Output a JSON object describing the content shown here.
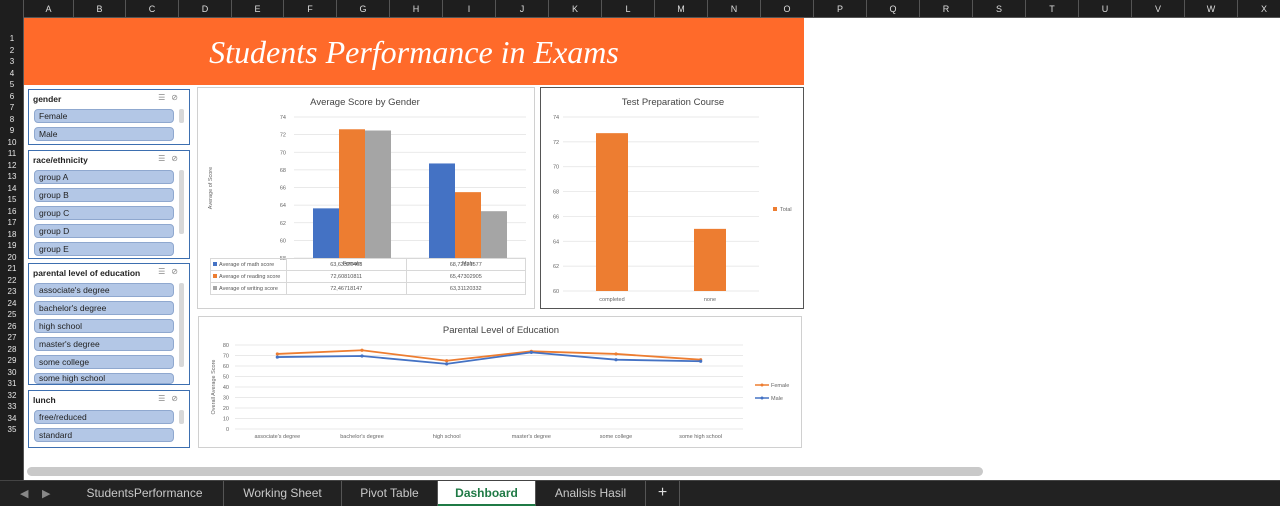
{
  "columns": [
    "A",
    "B",
    "C",
    "D",
    "E",
    "F",
    "G",
    "H",
    "I",
    "J",
    "K",
    "L",
    "M",
    "N",
    "O",
    "P",
    "Q",
    "R",
    "S",
    "T",
    "U",
    "V",
    "W",
    "X"
  ],
  "rows": [
    "1",
    "2",
    "3",
    "4",
    "5",
    "6",
    "7",
    "8",
    "9",
    "10",
    "11",
    "12",
    "13",
    "14",
    "15",
    "16",
    "17",
    "18",
    "19",
    "20",
    "21",
    "22",
    "23",
    "24",
    "25",
    "26",
    "27",
    "28",
    "29",
    "30",
    "31",
    "32",
    "33",
    "34",
    "35"
  ],
  "banner": {
    "title": "Students Performance in Exams",
    "color": "#ff6a2a"
  },
  "slicers": [
    {
      "title": "gender",
      "items": [
        "Female",
        "Male"
      ]
    },
    {
      "title": "race/ethnicity",
      "items": [
        "group A",
        "group B",
        "group C",
        "group D",
        "group E"
      ]
    },
    {
      "title": "parental level of education",
      "items": [
        "associate's degree",
        "bachelor's degree",
        "high school",
        "master's degree",
        "some college",
        "some high school"
      ]
    },
    {
      "title": "lunch",
      "items": [
        "free/reduced",
        "standard"
      ]
    }
  ],
  "chart_data": [
    {
      "type": "bar",
      "title": "Average Score by Gender",
      "ylabel": "Average of Score",
      "categories": [
        "Female",
        "Male"
      ],
      "ylim": [
        58,
        74
      ],
      "yticks": [
        "58",
        "60",
        "62",
        "64",
        "66",
        "68",
        "70",
        "72",
        "74"
      ],
      "series": [
        {
          "name": "Average of math score",
          "values": [
            63.63320463,
            68.72821577
          ],
          "labels": [
            "63,63320463",
            "68,72821577"
          ],
          "color": "#4472c4"
        },
        {
          "name": "Average of reading score",
          "values": [
            72.60810811,
            65.47302905
          ],
          "labels": [
            "72,60810811",
            "65,47302905"
          ],
          "color": "#ed7d31"
        },
        {
          "name": "Average of writing score",
          "values": [
            72.46718147,
            63.31120332
          ],
          "labels": [
            "72,46718147",
            "63,31120332"
          ],
          "color": "#a5a5a5"
        }
      ]
    },
    {
      "type": "bar",
      "title": "Test Preparation Course",
      "categories": [
        "completed",
        "none"
      ],
      "ylim": [
        60,
        74
      ],
      "yticks": [
        "60",
        "62",
        "64",
        "66",
        "68",
        "70",
        "72",
        "74"
      ],
      "series": [
        {
          "name": "Total",
          "values": [
            72.7,
            65.0
          ],
          "color": "#ed7d31"
        }
      ]
    },
    {
      "type": "line",
      "title": "Parental Level of Education",
      "ylabel": "Overall Average Score",
      "categories": [
        "associate's degree",
        "bachelor's degree",
        "high school",
        "master's degree",
        "some college",
        "some high school"
      ],
      "ylim": [
        0,
        80
      ],
      "yticks": [
        "0",
        "10",
        "20",
        "30",
        "40",
        "50",
        "60",
        "70",
        "80"
      ],
      "series": [
        {
          "name": "Female",
          "values": [
            71.5,
            75,
            65,
            74,
            71.5,
            66
          ],
          "color": "#ed7d31"
        },
        {
          "name": "Male",
          "values": [
            68.5,
            69.5,
            62,
            73,
            66,
            64.5
          ],
          "color": "#4472c4"
        }
      ]
    }
  ],
  "sheet_tabs": [
    "StudentsPerformance",
    "Working Sheet",
    "Pivot Table",
    "Dashboard",
    "Analisis Hasil"
  ],
  "active_tab": "Dashboard",
  "tab_add_label": "+",
  "nav_prev": "◀",
  "nav_next": "▶"
}
